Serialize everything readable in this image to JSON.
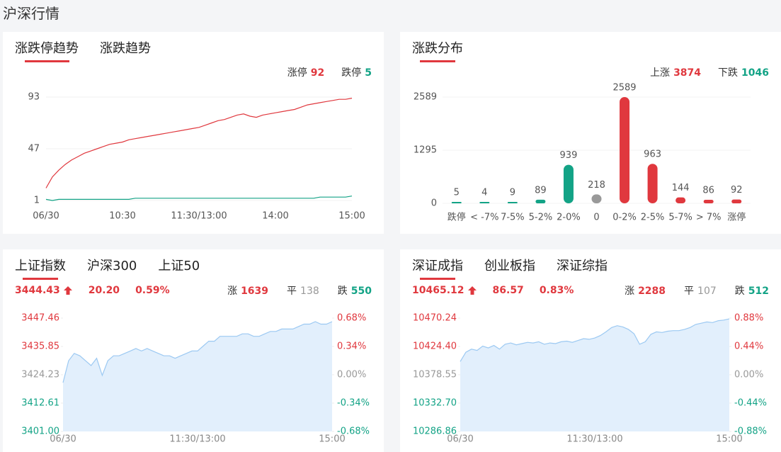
{
  "header": {
    "title": "沪深行情"
  },
  "colors": {
    "up": "#e0383e",
    "down": "#13a386",
    "flat": "#999999"
  },
  "panels": [
    {
      "tabs": [
        "涨跌停趋势",
        "涨跌趋势"
      ],
      "active": 0,
      "chart": {
        "type": "line",
        "ylim": [
          1,
          93
        ],
        "yticks": [
          1,
          47,
          93
        ],
        "grid": true,
        "xlim": [
          0,
          48
        ],
        "xticks": [
          {
            "value": 0,
            "label": "06/30"
          },
          {
            "value": 12,
            "label": "10:30"
          },
          {
            "value": 24,
            "label": "11:30/13:00"
          },
          {
            "value": 36,
            "label": "14:00"
          },
          {
            "value": 48,
            "label": "15:00"
          }
        ],
        "series": [
          {
            "name": "涨停",
            "latest": 92,
            "color": "#e0383e",
            "values": [
              12,
              22,
              28,
              33,
              37,
              40,
              43,
              45,
              47,
              49,
              51,
              52,
              53,
              55,
              56,
              57,
              58,
              59,
              60,
              61,
              62,
              63,
              64,
              65,
              66,
              68,
              70,
              72,
              73,
              75,
              77,
              78,
              76,
              75,
              77,
              78,
              79,
              80,
              81,
              82,
              84,
              86,
              87,
              88,
              89,
              90,
              91,
              91,
              92
            ]
          },
          {
            "name": "跌停",
            "latest": 5,
            "color": "#13a386",
            "values": [
              2,
              1,
              2,
              2,
              2,
              2,
              2,
              2,
              2,
              2,
              2,
              2,
              2,
              2,
              3,
              3,
              3,
              3,
              3,
              3,
              3,
              3,
              3,
              3,
              3,
              3,
              3,
              3,
              3,
              3,
              3,
              3,
              3,
              3,
              3,
              3,
              3,
              3,
              3,
              3,
              3,
              3,
              3,
              4,
              4,
              4,
              4,
              4,
              5
            ]
          }
        ]
      }
    },
    {
      "tabs": [
        "涨跌分布"
      ],
      "active": 0,
      "counts": [
        {
          "name": "上涨",
          "value": 3874,
          "color": "#e0383e"
        },
        {
          "name": "下跌",
          "value": 1046,
          "color": "#13a386"
        }
      ],
      "chart": {
        "type": "bar",
        "ylim": [
          0,
          2589
        ],
        "yticks": [
          0,
          1295,
          2589
        ],
        "grid": true,
        "categories": [
          "跌停",
          "< -7%",
          "7-5%",
          "5-2%",
          "2-0%",
          "0",
          "0-2%",
          "2-5%",
          "5-7%",
          "> 7%",
          "涨停"
        ],
        "values": [
          5,
          4,
          9,
          89,
          939,
          218,
          2589,
          963,
          144,
          86,
          92
        ],
        "colors": [
          "#13a386",
          "#13a386",
          "#13a386",
          "#13a386",
          "#13a386",
          "#999999",
          "#e0383e",
          "#e0383e",
          "#e0383e",
          "#e0383e",
          "#e0383e"
        ]
      }
    },
    {
      "tabs": [
        "上证指数",
        "沪深300",
        "上证50"
      ],
      "active": 0,
      "quote": {
        "price": "3444.43",
        "change": "20.20",
        "percent": "0.59%",
        "breadth": [
          {
            "name": "涨",
            "value": 1639
          },
          {
            "name": "平",
            "value": 138
          },
          {
            "name": "跌",
            "value": 550
          }
        ]
      },
      "chart": {
        "type": "area",
        "color": "#9cc9f2",
        "fill": "#e2effc",
        "ylim": [
          3401,
          3447.46
        ],
        "yticks": [
          {
            "value": 3401,
            "label": "3401.00"
          },
          3412.61,
          3424.23,
          3435.85,
          3447.46
        ],
        "y2lim": [
          -0.68,
          0.68
        ],
        "y2ticks": [
          {
            "value": -0.68,
            "label": "-0.68%"
          },
          {
            "value": -0.34,
            "label": "-0.34%"
          },
          {
            "value": 0,
            "label": "0.00%"
          },
          {
            "value": 0.34,
            "label": "0.34%"
          },
          {
            "value": 0.68,
            "label": "0.68%"
          }
        ],
        "xlim": [
          0,
          48
        ],
        "xticks": [
          {
            "value": 0,
            "label": "06/30"
          },
          {
            "value": 24,
            "label": "11:30/13:00"
          },
          {
            "value": 48,
            "label": "15:00"
          }
        ],
        "values": [
          3421,
          3430,
          3433,
          3432,
          3430,
          3428,
          3431,
          3424,
          3430,
          3432,
          3432,
          3433,
          3434,
          3435,
          3434,
          3435,
          3434,
          3433,
          3432,
          3432,
          3431,
          3432,
          3433,
          3434,
          3434,
          3436,
          3438,
          3438,
          3440,
          3440,
          3440,
          3440,
          3441,
          3441,
          3440,
          3440,
          3441,
          3442,
          3442,
          3443,
          3443,
          3443,
          3444,
          3445,
          3445,
          3446,
          3445,
          3445,
          3446
        ]
      }
    },
    {
      "tabs": [
        "深证成指",
        "创业板指",
        "深证综指"
      ],
      "active": 0,
      "quote": {
        "price": "10465.12",
        "change": "86.57",
        "percent": "0.83%",
        "breadth": [
          {
            "name": "涨",
            "value": 2288
          },
          {
            "name": "平",
            "value": 107
          },
          {
            "name": "跌",
            "value": 512
          }
        ]
      },
      "chart": {
        "type": "area",
        "color": "#9cc9f2",
        "fill": "#e2effc",
        "ylim": [
          10286.86,
          10470.24
        ],
        "yticks": [
          10286.86,
          {
            "value": 10332.7,
            "label": "10332.70"
          },
          10378.55,
          {
            "value": 10424.4,
            "label": "10424.40"
          },
          10470.24
        ],
        "y2lim": [
          -0.88,
          0.88
        ],
        "y2ticks": [
          {
            "value": -0.88,
            "label": "-0.88%"
          },
          {
            "value": -0.44,
            "label": "-0.44%"
          },
          {
            "value": 0,
            "label": "0.00%"
          },
          {
            "value": 0.44,
            "label": "0.44%"
          },
          {
            "value": 0.88,
            "label": "0.88%"
          }
        ],
        "xlim": [
          0,
          48
        ],
        "xticks": [
          {
            "value": 0,
            "label": "06/30"
          },
          {
            "value": 24,
            "label": "11:30/13:00"
          },
          {
            "value": 48,
            "label": "15:00"
          }
        ],
        "values": [
          10400,
          10415,
          10420,
          10418,
          10425,
          10422,
          10426,
          10420,
          10428,
          10430,
          10427,
          10429,
          10431,
          10430,
          10432,
          10428,
          10430,
          10429,
          10432,
          10433,
          10431,
          10434,
          10437,
          10436,
          10438,
          10442,
          10448,
          10455,
          10458,
          10456,
          10452,
          10445,
          10428,
          10432,
          10444,
          10448,
          10447,
          10449,
          10450,
          10450,
          10452,
          10455,
          10460,
          10462,
          10464,
          10463,
          10466,
          10467,
          10469
        ]
      }
    }
  ]
}
